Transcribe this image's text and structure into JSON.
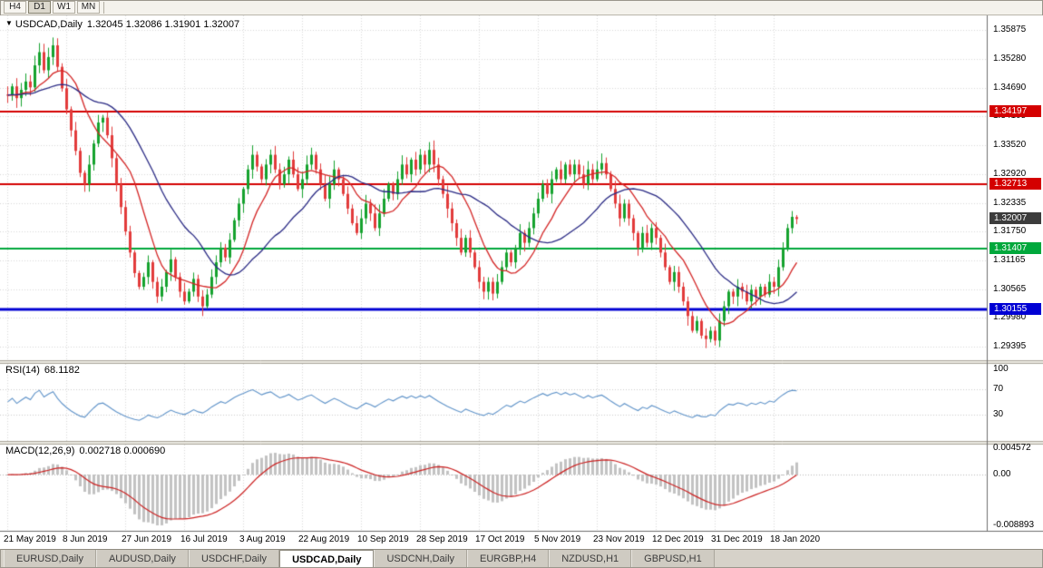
{
  "toolbar": {
    "timeframes": [
      "H4",
      "D1",
      "W1",
      "MN"
    ],
    "active": "D1"
  },
  "chart_header": {
    "marker": "▼",
    "symbol": "USDCAD,Daily",
    "ohlc": "1.32045 1.32086 1.31901 1.32007"
  },
  "rsi_header": {
    "name": "RSI(14)",
    "value": "68.1182"
  },
  "macd_header": {
    "name": "MACD(12,26,9)",
    "values": "0.002718 0.000690"
  },
  "tabs": {
    "items": [
      "EURUSD,Daily",
      "AUDUSD,Daily",
      "USDCHF,Daily",
      "USDCAD,Daily",
      "USDCNH,Daily",
      "EURGBP,H4",
      "NZDUSD,H1",
      "GBPUSD,H1"
    ],
    "active": "USDCAD,Daily"
  },
  "chart_data": {
    "type": "candlestick",
    "symbol": "USDCAD",
    "timeframe": "Daily",
    "ohlc_display": {
      "open": "1.32045",
      "high": "1.32086",
      "low": "1.31901",
      "close": "1.32007"
    },
    "x_labels": [
      "21 May 2019",
      "8 Jun 2019",
      "27 Jun 2019",
      "16 Jul 2019",
      "3 Aug 2019",
      "22 Aug 2019",
      "10 Sep 2019",
      "28 Sep 2019",
      "17 Oct 2019",
      "5 Nov 2019",
      "23 Nov 2019",
      "12 Dec 2019",
      "31 Dec 2019",
      "18 Jan 2020"
    ],
    "candles_per_label": 13,
    "y_axis_labels": [
      "1.35875",
      "1.35280",
      "1.34690",
      "1.34105",
      "1.33520",
      "1.32920",
      "1.32335",
      "1.31750",
      "1.31165",
      "1.30565",
      "1.29980",
      "1.29395"
    ],
    "closes": [
      1.3455,
      1.3472,
      1.3448,
      1.3465,
      1.3482,
      1.347,
      1.3515,
      1.3542,
      1.3505,
      1.3532,
      1.3556,
      1.3512,
      1.3468,
      1.3425,
      1.3382,
      1.334,
      1.3295,
      1.3272,
      1.3312,
      1.3355,
      1.3398,
      1.3408,
      1.3372,
      1.3325,
      1.3272,
      1.3225,
      1.3175,
      1.3132,
      1.309,
      1.3062,
      1.3082,
      1.3112,
      1.3072,
      1.3042,
      1.3062,
      1.3092,
      1.3118,
      1.3082,
      1.3052,
      1.3032,
      1.3052,
      1.3078,
      1.3042,
      1.3022,
      1.3046,
      1.3082,
      1.3112,
      1.3142,
      1.3122,
      1.3158,
      1.3198,
      1.3232,
      1.3262,
      1.3302,
      1.3332,
      1.3308,
      1.3282,
      1.3312,
      1.3332,
      1.3302,
      1.3272,
      1.3292,
      1.3322,
      1.3292,
      1.3262,
      1.3282,
      1.3312,
      1.3332,
      1.3302,
      1.3272,
      1.3242,
      1.3272,
      1.3302,
      1.3282,
      1.3252,
      1.3222,
      1.3192,
      1.3172,
      1.3202,
      1.3232,
      1.3212,
      1.3182,
      1.3212,
      1.3242,
      1.3272,
      1.3252,
      1.3282,
      1.3312,
      1.3292,
      1.3322,
      1.3302,
      1.3332,
      1.3312,
      1.3342,
      1.3312,
      1.3282,
      1.3252,
      1.3222,
      1.3192,
      1.3162,
      1.3132,
      1.3162,
      1.3132,
      1.3102,
      1.3072,
      1.3052,
      1.3072,
      1.3048,
      1.3072,
      1.3102,
      1.3132,
      1.3112,
      1.3142,
      1.3172,
      1.3152,
      1.3182,
      1.3212,
      1.3242,
      1.3272,
      1.3252,
      1.3282,
      1.3302,
      1.3282,
      1.3312,
      1.3292,
      1.3312,
      1.3292,
      1.3272,
      1.3302,
      1.3282,
      1.3302,
      1.3315,
      1.3292,
      1.3262,
      1.3232,
      1.3202,
      1.3232,
      1.3202,
      1.3172,
      1.3142,
      1.3172,
      1.3152,
      1.3182,
      1.3162,
      1.3132,
      1.3102,
      1.3072,
      1.3092,
      1.3062,
      1.3032,
      1.3002,
      1.2972,
      1.2992,
      1.2962,
      1.2955,
      1.2972,
      1.2952,
      1.2992,
      1.3022,
      1.3052,
      1.3042,
      1.3062,
      1.3052,
      1.3032,
      1.3056,
      1.3042,
      1.3062,
      1.3046,
      1.3072,
      1.3062,
      1.3102,
      1.3142,
      1.3182,
      1.3205,
      1.32007
    ],
    "last_candle": {
      "open": 1.32045,
      "high": 1.32086,
      "low": 1.31901,
      "close": 1.32007
    },
    "current_price": {
      "value": 1.32007,
      "label": "1.32007",
      "badge_color": "#3c3c3c"
    },
    "hlines": [
      {
        "price": 1.34197,
        "label": "1.34197",
        "color": "#d40000",
        "width": 2
      },
      {
        "price": 1.32713,
        "label": "1.32713",
        "color": "#d40000",
        "width": 2
      },
      {
        "price": 1.31407,
        "label": "1.31407",
        "color": "#00a83c",
        "width": 2
      },
      {
        "price": 1.30155,
        "label": "1.30155",
        "color": "#0000d4",
        "width": 3
      }
    ],
    "moving_averages": [
      {
        "period": 10,
        "color": "#d42626"
      },
      {
        "period": 24,
        "color": "#2b2b85"
      }
    ],
    "candle_colors": {
      "up": "#15a22e",
      "down": "#e23b3b"
    },
    "indicators": {
      "rsi": {
        "period": 14,
        "current": 68.1182,
        "axis_labels": [
          "100",
          "70",
          "30"
        ],
        "levels": [
          70,
          30
        ],
        "color": "#5f93c9"
      },
      "macd": {
        "fast": 12,
        "slow": 26,
        "signal_period": 9,
        "current_macd": 0.002718,
        "current_signal": 0.00069,
        "axis_labels": [
          {
            "text": "0.004572",
            "value": 0.004572
          },
          {
            "text": "0.00",
            "value": 0
          },
          {
            "text": "-0.008893",
            "value": -0.008893
          }
        ],
        "histogram_color": "#c2c2c2",
        "signal_color": "#cc2222"
      }
    }
  }
}
